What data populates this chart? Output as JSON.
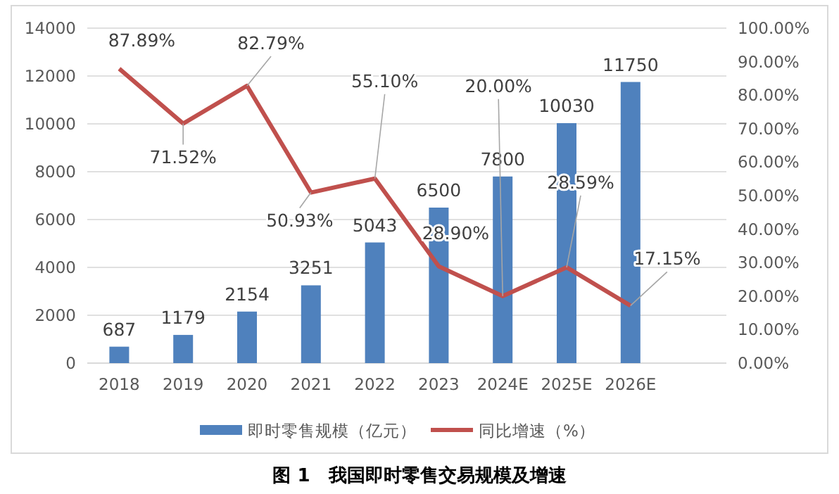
{
  "chart_data": {
    "type": "bar",
    "title": "图 1　我国即时零售交易规模及增速",
    "categories": [
      "2018",
      "2019",
      "2020",
      "2021",
      "2022",
      "2023",
      "2024E",
      "2025E",
      "2026E"
    ],
    "series": [
      {
        "name": "即时零售规模（亿元）",
        "type": "bar",
        "color": "#4f81bd",
        "values": [
          687,
          1179,
          2154,
          3251,
          5043,
          6500,
          7800,
          10030,
          11750
        ],
        "data_labels": true
      },
      {
        "name": "同比增速（%）",
        "type": "line",
        "axis": "y2",
        "color": "#c0504d",
        "values": [
          87.89,
          71.52,
          82.79,
          50.93,
          55.1,
          28.9,
          20.0,
          28.59,
          17.15
        ],
        "value_labels": [
          "87.89%",
          "71.52%",
          "82.79%",
          "50.93%",
          "55.10%",
          "28.90%",
          "20.00%",
          "28.59%",
          "17.15%"
        ]
      }
    ],
    "ylim": [
      0,
      14000
    ],
    "yticks": [
      0,
      2000,
      4000,
      6000,
      8000,
      10000,
      12000,
      14000
    ],
    "y2lim": [
      0,
      100
    ],
    "y2ticks": [
      {
        "value": 0,
        "label": "0.00%"
      },
      {
        "value": 10,
        "label": "10.00%"
      },
      {
        "value": 20,
        "label": "20.00%"
      },
      {
        "value": 30,
        "label": "30.00%"
      },
      {
        "value": 40,
        "label": "40.00%"
      },
      {
        "value": 50,
        "label": "50.00%"
      },
      {
        "value": 60,
        "label": "60.00%"
      },
      {
        "value": 70,
        "label": "70.00%"
      },
      {
        "value": 80,
        "label": "80.00%"
      },
      {
        "value": 90,
        "label": "90.00%"
      },
      {
        "value": 100,
        "label": "100.00%"
      }
    ],
    "grid": "y",
    "legend": "bottom",
    "marker": "none",
    "line_style": "solid"
  }
}
